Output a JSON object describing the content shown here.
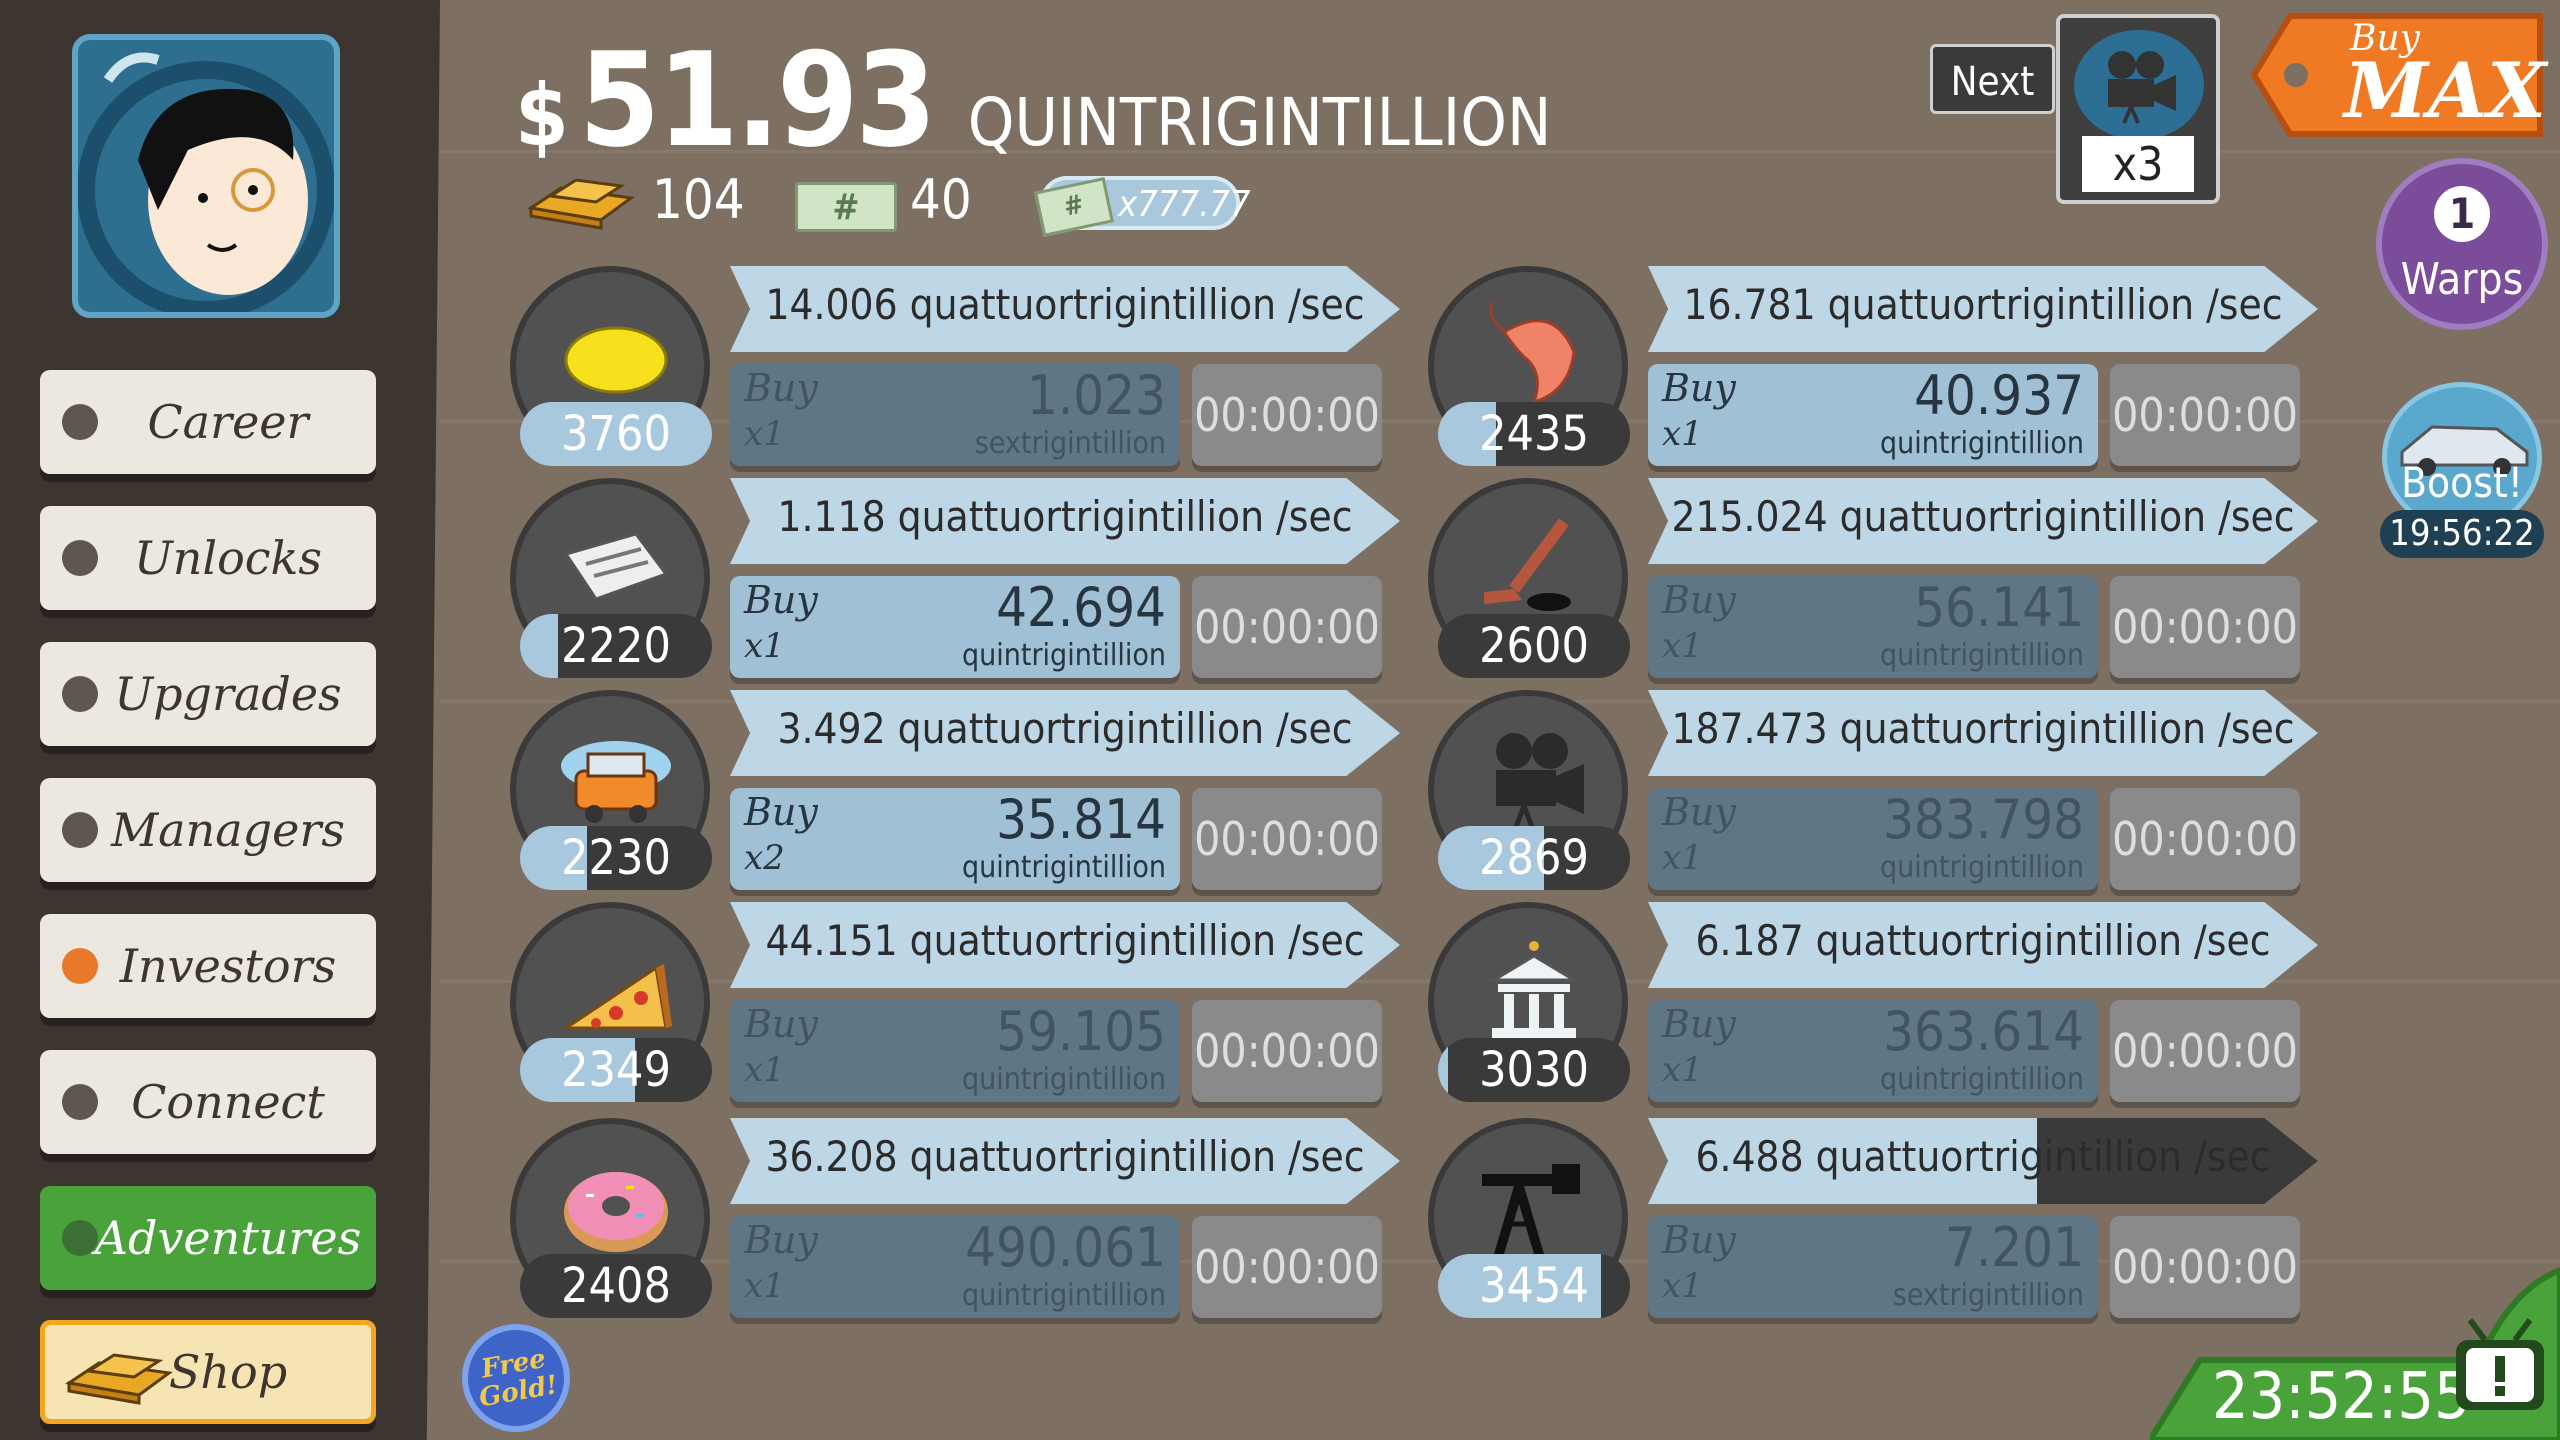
{
  "header": {
    "currency_symbol": "$",
    "money_amount": "51.93",
    "money_unit": "QUINTRIGINTILLION",
    "gold_count": "104",
    "megabucks_count": "40",
    "multiplier_label": "x777.77"
  },
  "next_unlock": {
    "label": "Next",
    "multiplier": "x3",
    "icon": "film-camera-icon"
  },
  "buy_max": {
    "label_small": "Buy",
    "label_big": "MAX"
  },
  "warps": {
    "count": "1",
    "label": "Warps"
  },
  "boost": {
    "label": "Boost!",
    "timer": "19:56:22"
  },
  "sidebar": {
    "items": [
      {
        "label": "Career",
        "dot_color": "#5c5550",
        "active": false
      },
      {
        "label": "Unlocks",
        "dot_color": "#5c5550",
        "active": false
      },
      {
        "label": "Upgrades",
        "dot_color": "#5c5550",
        "active": false
      },
      {
        "label": "Managers",
        "dot_color": "#5c5550",
        "active": false
      },
      {
        "label": "Investors",
        "dot_color": "#e8792b",
        "active": false
      },
      {
        "label": "Connect",
        "dot_color": "#5c5550",
        "active": false
      },
      {
        "label": "Adventures",
        "dot_color": "#3c6f33",
        "active": true
      }
    ],
    "shop_label": "Shop"
  },
  "free_gold": {
    "label": "Free Gold!"
  },
  "tv_timer": "23:52:55",
  "businesses": [
    {
      "icon": "lemon-icon",
      "level": "3760",
      "level_progress": 1.0,
      "revenue": "14.006 quattuortrigintillion /sec",
      "revenue_progress": 0.0,
      "buy_label": "Buy",
      "buy_qty": "x1",
      "buy_cost": "1.023",
      "buy_unit": "sextrigintillion",
      "can_afford": false,
      "timer": "00:00:00"
    },
    {
      "icon": "shrimp-icon",
      "level": "2435",
      "level_progress": 0.3,
      "revenue": "16.781 quattuortrigintillion /sec",
      "revenue_progress": 0.0,
      "buy_label": "Buy",
      "buy_qty": "x1",
      "buy_cost": "40.937",
      "buy_unit": "quintrigintillion",
      "can_afford": true,
      "timer": "00:00:00"
    },
    {
      "icon": "newspaper-icon",
      "level": "2220",
      "level_progress": 0.2,
      "revenue": "1.118 quattuortrigintillion /sec",
      "revenue_progress": 0.0,
      "buy_label": "Buy",
      "buy_qty": "x1",
      "buy_cost": "42.694",
      "buy_unit": "quintrigintillion",
      "can_afford": true,
      "timer": "00:00:00"
    },
    {
      "icon": "hockey-stick-icon",
      "level": "2600",
      "level_progress": 0.0,
      "revenue": "215.024 quattuortrigintillion /sec",
      "revenue_progress": 0.0,
      "buy_label": "Buy",
      "buy_qty": "x1",
      "buy_cost": "56.141",
      "buy_unit": "quintrigintillion",
      "can_afford": false,
      "timer": "00:00:00"
    },
    {
      "icon": "car-wash-icon",
      "level": "2230",
      "level_progress": 0.35,
      "revenue": "3.492 quattuortrigintillion /sec",
      "revenue_progress": 0.0,
      "buy_label": "Buy",
      "buy_qty": "x2",
      "buy_cost": "35.814",
      "buy_unit": "quintrigintillion",
      "can_afford": true,
      "timer": "00:00:00"
    },
    {
      "icon": "film-camera-icon",
      "level": "2869",
      "level_progress": 0.55,
      "revenue": "187.473 quattuortrigintillion /sec",
      "revenue_progress": 0.0,
      "buy_label": "Buy",
      "buy_qty": "x1",
      "buy_cost": "383.798",
      "buy_unit": "quintrigintillion",
      "can_afford": false,
      "timer": "00:00:00"
    },
    {
      "icon": "pizza-icon",
      "level": "2349",
      "level_progress": 0.6,
      "revenue": "44.151 quattuortrigintillion /sec",
      "revenue_progress": 0.0,
      "buy_label": "Buy",
      "buy_qty": "x1",
      "buy_cost": "59.105",
      "buy_unit": "quintrigintillion",
      "can_afford": false,
      "timer": "00:00:00"
    },
    {
      "icon": "bank-icon",
      "level": "3030",
      "level_progress": 0.05,
      "revenue": "6.187 quattuortrigintillion /sec",
      "revenue_progress": 0.0,
      "buy_label": "Buy",
      "buy_qty": "x1",
      "buy_cost": "363.614",
      "buy_unit": "quintrigintillion",
      "can_afford": false,
      "timer": "00:00:00"
    },
    {
      "icon": "donut-icon",
      "level": "2408",
      "level_progress": 0.0,
      "revenue": "36.208 quattuortrigintillion /sec",
      "revenue_progress": 0.0,
      "buy_label": "Buy",
      "buy_qty": "x1",
      "buy_cost": "490.061",
      "buy_unit": "quintrigintillion",
      "can_afford": false,
      "timer": "00:00:00"
    },
    {
      "icon": "oil-rig-icon",
      "level": "3454",
      "level_progress": 0.85,
      "revenue": "6.488 quattuortrigintillion /sec",
      "revenue_progress": 0.42,
      "buy_label": "Buy",
      "buy_qty": "x1",
      "buy_cost": "7.201",
      "buy_unit": "sextrigintillion",
      "can_afford": false,
      "timer": "00:00:00"
    }
  ]
}
